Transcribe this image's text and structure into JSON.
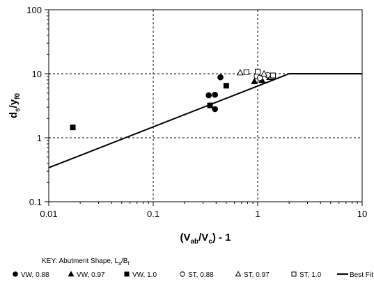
{
  "chart_data": {
    "type": "scatter",
    "x_scale": "log",
    "y_scale": "log",
    "xlim": [
      0.01,
      10
    ],
    "ylim": [
      0.1,
      100
    ],
    "grid": true,
    "grid_style": "dashed",
    "x_ticks": [
      {
        "value": 0.01,
        "label": "0.01"
      },
      {
        "value": 0.1,
        "label": "0.1"
      },
      {
        "value": 1,
        "label": "1"
      },
      {
        "value": 10,
        "label": "10"
      }
    ],
    "y_ticks": [
      {
        "value": 0.1,
        "label": "0.1"
      },
      {
        "value": 1,
        "label": "1"
      },
      {
        "value": 10,
        "label": "10"
      },
      {
        "value": 100,
        "label": "100"
      }
    ],
    "xlabel": {
      "main": "(V",
      "sub1": "ab",
      "mid": "/V",
      "sub2": "c",
      "tail": ") - 1"
    },
    "ylabel": {
      "d": "d",
      "s": "s",
      "slash": "/y",
      "f0": "f0"
    },
    "key": {
      "prefix": "KEY:  Abutment Shape, L",
      "sub1": "a",
      "slash": "/B",
      "sub2": "f"
    },
    "legend_position": "bottom",
    "series": [
      {
        "name": "VW, 0.88",
        "marker": "circle",
        "filled": true,
        "points": [
          [
            0.34,
            4.6
          ],
          [
            0.39,
            4.7
          ],
          [
            0.39,
            2.8
          ],
          [
            0.44,
            8.8
          ]
        ]
      },
      {
        "name": "VW, 0.97",
        "marker": "triangle",
        "filled": true,
        "points": [
          [
            0.93,
            7.6
          ],
          [
            1.1,
            7.9
          ],
          [
            1.3,
            8.8
          ]
        ]
      },
      {
        "name": "VW, 1.0",
        "marker": "square",
        "filled": true,
        "points": [
          [
            0.017,
            1.45
          ],
          [
            0.35,
            3.2
          ],
          [
            0.5,
            6.5
          ]
        ]
      },
      {
        "name": "ST, 0.88",
        "marker": "circle",
        "filled": false,
        "points": [
          [
            0.98,
            9.2
          ],
          [
            1.05,
            8.6
          ],
          [
            1.25,
            9.5
          ]
        ]
      },
      {
        "name": "ST, 0.97",
        "marker": "triangle",
        "filled": false,
        "points": [
          [
            0.68,
            10.4
          ],
          [
            1.15,
            10.0
          ],
          [
            1.35,
            9.0
          ]
        ]
      },
      {
        "name": "ST, 1.0",
        "marker": "square",
        "filled": false,
        "points": [
          [
            0.78,
            10.6
          ],
          [
            1.0,
            10.8
          ],
          [
            1.4,
            9.4
          ]
        ]
      }
    ],
    "best_fit": {
      "name": "Best Fit",
      "points": [
        [
          0.01,
          0.34
        ],
        [
          2.0,
          10
        ],
        [
          10,
          10
        ]
      ]
    }
  }
}
